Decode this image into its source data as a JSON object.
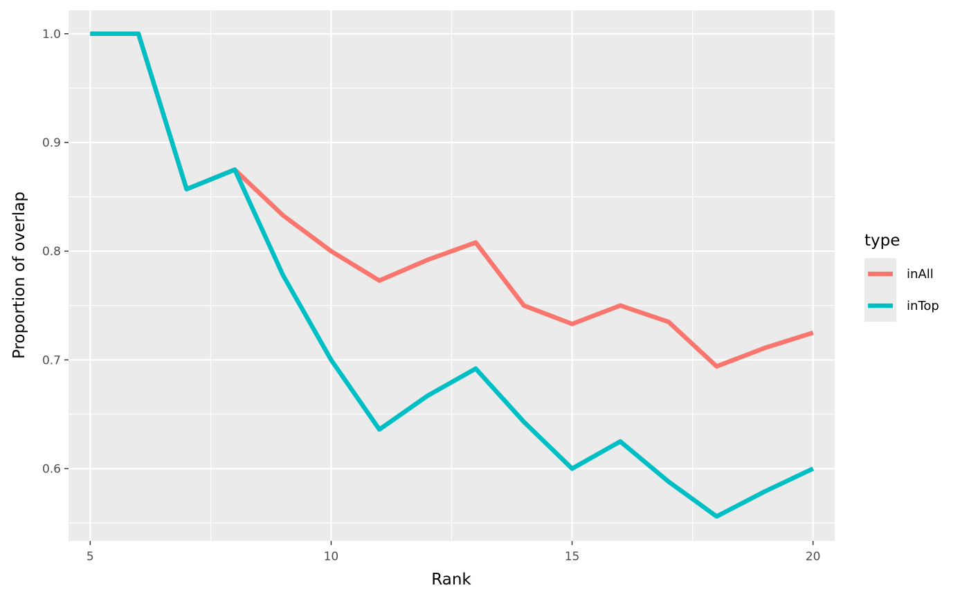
{
  "chart_data": {
    "type": "line",
    "title": "",
    "xlabel": "Rank",
    "ylabel": "Proportion of overlap",
    "xlim": [
      4.55,
      20.45
    ],
    "ylim": [
      0.5335,
      1.0215
    ],
    "x_ticks": [
      5,
      10,
      15,
      20
    ],
    "x_tick_labels": [
      "5",
      "10",
      "15",
      "20"
    ],
    "y_ticks": [
      0.6,
      0.7,
      0.8,
      0.9,
      1.0
    ],
    "y_tick_labels": [
      "0.6",
      "0.7",
      "0.8",
      "0.9",
      "1.0"
    ],
    "grid": true,
    "panel_background": "#ebebeb",
    "legend": {
      "title": "type",
      "placement": "right"
    },
    "x": [
      5,
      6,
      7,
      8,
      9,
      10,
      11,
      12,
      13,
      14,
      15,
      16,
      17,
      18,
      19,
      20
    ],
    "series": [
      {
        "name": "inAll",
        "color": "#f8766d",
        "values": [
          1.0,
          1.0,
          0.857,
          0.875,
          0.833,
          0.8,
          0.773,
          0.792,
          0.808,
          0.75,
          0.733,
          0.75,
          0.735,
          0.694,
          0.711,
          0.725
        ]
      },
      {
        "name": "inTop",
        "color": "#00bfc4",
        "values": [
          1.0,
          1.0,
          0.857,
          0.875,
          0.778,
          0.7,
          0.636,
          0.667,
          0.692,
          0.643,
          0.6,
          0.625,
          0.588,
          0.556,
          0.579,
          0.6
        ]
      }
    ]
  }
}
